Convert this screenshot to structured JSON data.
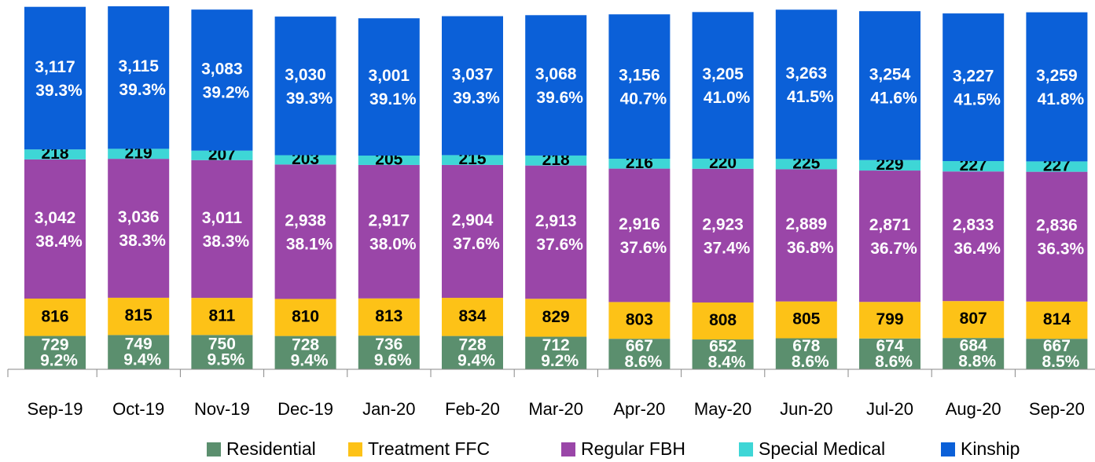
{
  "chart_data": {
    "type": "stacked_bar",
    "categories": [
      "Sep-19",
      "Oct-19",
      "Nov-19",
      "Dec-19",
      "Jan-20",
      "Feb-20",
      "Mar-20",
      "Apr-20",
      "May-20",
      "Jun-20",
      "Jul-20",
      "Aug-20",
      "Sep-20"
    ],
    "legend": "bottom",
    "series": [
      {
        "name": "Residential",
        "color": "#5b8f6e",
        "label_color": "#ffffff",
        "values": [
          729,
          749,
          750,
          728,
          736,
          728,
          712,
          667,
          652,
          678,
          674,
          684,
          667
        ],
        "value_labels": [
          "729",
          "749",
          "750",
          "728",
          "736",
          "728",
          "712",
          "667",
          "652",
          "678",
          "674",
          "684",
          "667"
        ],
        "share_labels": [
          "9.2%",
          "9.4%",
          "9.5%",
          "9.4%",
          "9.6%",
          "9.4%",
          "9.2%",
          "8.6%",
          "8.4%",
          "8.6%",
          "8.6%",
          "8.8%",
          "8.5%"
        ]
      },
      {
        "name": "Treatment FFC",
        "color": "#fdc217",
        "label_color": "#000000",
        "values": [
          816,
          815,
          811,
          810,
          813,
          834,
          829,
          803,
          808,
          805,
          799,
          807,
          814
        ],
        "value_labels": [
          "816",
          "815",
          "811",
          "810",
          "813",
          "834",
          "829",
          "803",
          "808",
          "805",
          "799",
          "807",
          "814"
        ]
      },
      {
        "name": "Regular FBH",
        "color": "#9a46a8",
        "label_color": "#ffffff",
        "values": [
          3042,
          3036,
          3011,
          2938,
          2917,
          2904,
          2913,
          2916,
          2923,
          2889,
          2871,
          2833,
          2836
        ],
        "value_labels": [
          "3,042",
          "3,036",
          "3,011",
          "2,938",
          "2,917",
          "2,904",
          "2,913",
          "2,916",
          "2,923",
          "2,889",
          "2,871",
          "2,833",
          "2,836"
        ],
        "share_labels": [
          "38.4%",
          "38.3%",
          "38.3%",
          "38.1%",
          "38.0%",
          "37.6%",
          "37.6%",
          "37.6%",
          "37.4%",
          "36.8%",
          "36.7%",
          "36.4%",
          "36.3%"
        ]
      },
      {
        "name": "Special Medical",
        "color": "#3ed6d6",
        "label_color": "#000000",
        "values": [
          218,
          219,
          207,
          203,
          205,
          215,
          218,
          216,
          220,
          225,
          229,
          227,
          227
        ],
        "value_labels": [
          "218",
          "219",
          "207",
          "203",
          "205",
          "215",
          "218",
          "216",
          "220",
          "225",
          "229",
          "227",
          "227"
        ]
      },
      {
        "name": "Kinship",
        "color": "#0b60d8",
        "label_color": "#ffffff",
        "values": [
          3117,
          3115,
          3083,
          3030,
          3001,
          3037,
          3068,
          3156,
          3205,
          3263,
          3254,
          3227,
          3259
        ],
        "value_labels": [
          "3,117",
          "3,115",
          "3,083",
          "3,030",
          "3,001",
          "3,037",
          "3,068",
          "3,156",
          "3,205",
          "3,263",
          "3,254",
          "3,227",
          "3,259"
        ],
        "share_labels": [
          "39.3%",
          "39.3%",
          "39.2%",
          "39.3%",
          "39.1%",
          "39.3%",
          "39.6%",
          "40.7%",
          "41.0%",
          "41.5%",
          "41.6%",
          "41.5%",
          "41.8%"
        ]
      }
    ]
  }
}
